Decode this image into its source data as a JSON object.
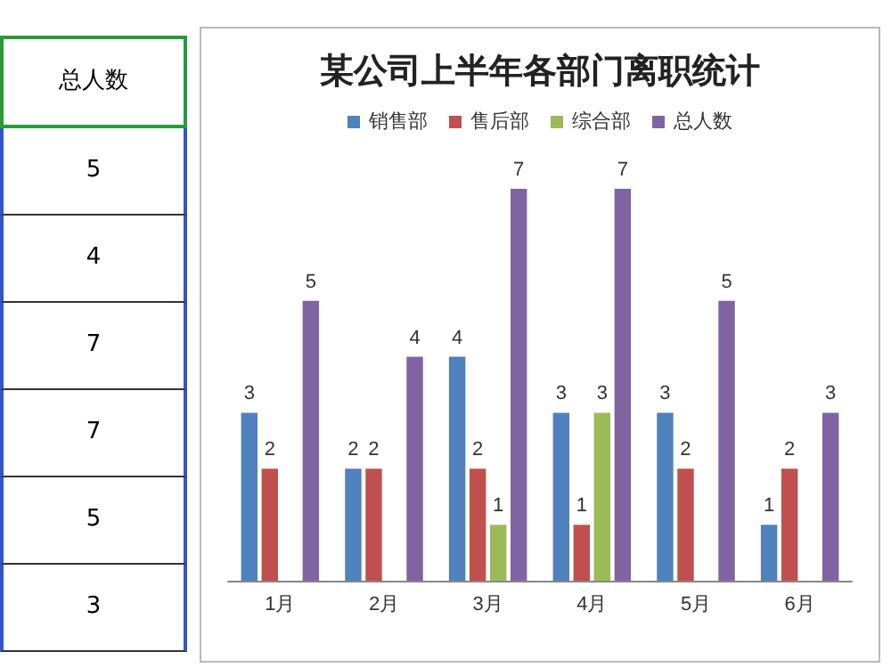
{
  "chart_data": [
    {
      "type": "other",
      "title": "总人数",
      "annotations": [
        "5",
        "4",
        "7",
        "7",
        "5",
        "3"
      ]
    },
    {
      "type": "bar",
      "title": "某公司上半年各部门离职统计",
      "categories": [
        "1月",
        "2月",
        "3月",
        "4月",
        "5月",
        "6月"
      ],
      "series": [
        {
          "name": "销售部",
          "color": "#4f81bd",
          "values": [
            3,
            2,
            4,
            3,
            3,
            1
          ]
        },
        {
          "name": "售后部",
          "color": "#c0504d",
          "values": [
            2,
            2,
            2,
            1,
            2,
            2
          ]
        },
        {
          "name": "综合部",
          "color": "#9bbb59",
          "values": [
            null,
            null,
            1,
            3,
            null,
            null
          ]
        },
        {
          "name": "总人数",
          "color": "#8064a2",
          "values": [
            5,
            4,
            7,
            7,
            5,
            3
          ]
        }
      ],
      "data_labels": true,
      "legend": "top"
    }
  ]
}
